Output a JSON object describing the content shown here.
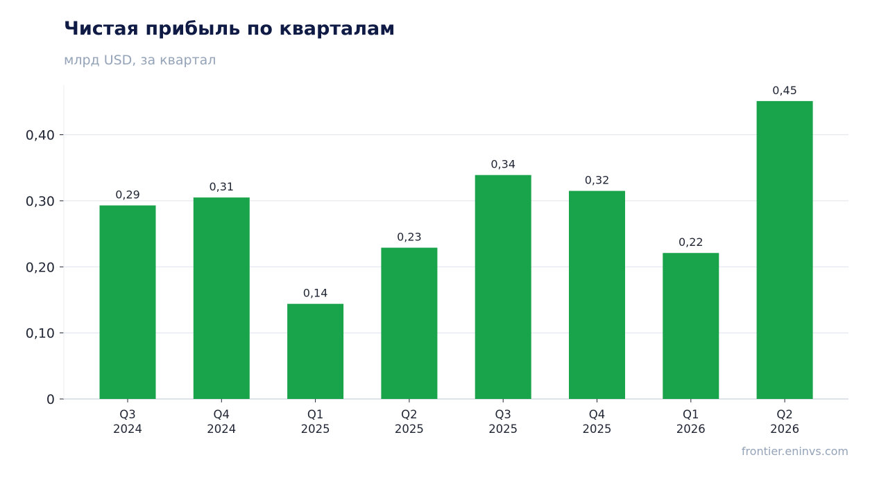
{
  "header": {
    "title": "Чистая прибыль по кварталам",
    "subtitle": "млрд USD, за квартал"
  },
  "footer": {
    "source": "frontier.eninvs.com"
  },
  "colors": {
    "bar": "#19a34a",
    "grid": "#e5e8f0",
    "axis": "#cbd2dc",
    "text": "#1f2433",
    "title": "#0f1b45",
    "muted": "#94a3b8"
  },
  "chart_data": {
    "type": "bar",
    "title": "Чистая прибыль по кварталам",
    "subtitle": "млрд USD, за квартал",
    "categories": [
      [
        "Q3",
        "2024"
      ],
      [
        "Q4",
        "2024"
      ],
      [
        "Q1",
        "2025"
      ],
      [
        "Q2",
        "2025"
      ],
      [
        "Q3",
        "2025"
      ],
      [
        "Q4",
        "2025"
      ],
      [
        "Q1",
        "2026"
      ],
      [
        "Q2",
        "2026"
      ]
    ],
    "values": [
      0.293,
      0.305,
      0.144,
      0.229,
      0.339,
      0.315,
      0.221,
      0.451
    ],
    "data_labels": [
      "0,29",
      "0,31",
      "0,14",
      "0,23",
      "0,34",
      "0,32",
      "0,22",
      "0,45"
    ],
    "yticks": [
      0,
      0.1,
      0.2,
      0.3,
      0.4
    ],
    "ytick_labels": [
      "0",
      "0,10",
      "0,20",
      "0,30",
      "0,40"
    ],
    "ylim": [
      0,
      0.475
    ],
    "grid": true,
    "legend": "none"
  }
}
